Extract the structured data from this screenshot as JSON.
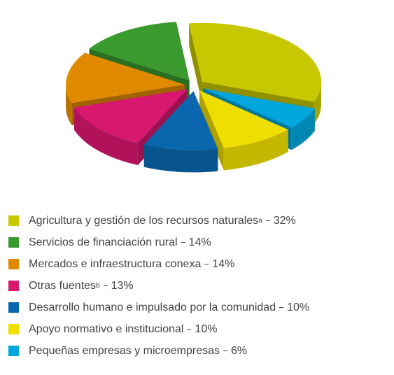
{
  "chart_data": {
    "type": "pie",
    "categories": [
      "Agricultura y gestión de los recursos naturales",
      "Servicios de financiación rural",
      "Mercados e infraestructura conexa",
      "Otras fuentes",
      "Desarrollo humano e impulsado por la comunidad",
      "Apoyo normativo e institucional",
      "Pequeñas empresas y microempresas"
    ],
    "category_notes": [
      "a",
      null,
      null,
      "b",
      null,
      null,
      null
    ],
    "values": [
      32,
      14,
      14,
      13,
      10,
      10,
      6
    ],
    "value_labels": [
      "32%",
      "14%",
      "14%",
      "13%",
      "10%",
      "10%",
      "6%"
    ],
    "colors": [
      "#c8c800",
      "#3a9a2e",
      "#e08a00",
      "#d8176e",
      "#0a67ad",
      "#efdf00",
      "#00a6dc"
    ],
    "legend": "bottom",
    "exploded": true,
    "three_d": true
  }
}
